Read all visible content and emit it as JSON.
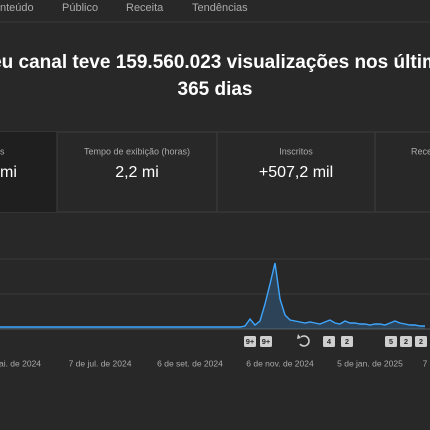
{
  "tabs": [
    "nteúdo",
    "Público",
    "Receita",
    "Tendências"
  ],
  "headline": {
    "line1": "eu canal teve 159.560.023 visualizações nos últim",
    "line2": "365 dias"
  },
  "cards": [
    {
      "label": "s",
      "value": "mi"
    },
    {
      "label": "Tempo de exibição (horas)",
      "value": "2,2 mi"
    },
    {
      "label": "Inscritos",
      "value": "+507,2 mil"
    },
    {
      "label": "Rece",
      "value": ""
    }
  ],
  "badges": [
    "9+",
    "9+",
    "4",
    "2",
    "5",
    "2",
    "2"
  ],
  "chart_data": {
    "type": "line",
    "color": "#3ea6ff",
    "ylim": [
      0,
      100
    ],
    "categories": [
      null,
      null,
      null,
      null,
      "ai. de 2024",
      null,
      null,
      null,
      null,
      null,
      null,
      null,
      null,
      null,
      null,
      null,
      null,
      null,
      null,
      null,
      "7 de jul. de 2024",
      null,
      null,
      null,
      null,
      null,
      null,
      null,
      null,
      null,
      null,
      null,
      null,
      null,
      null,
      null,
      null,
      null,
      "6 de set. de 2024",
      null,
      null,
      null,
      null,
      null,
      null,
      null,
      null,
      null,
      null,
      null,
      null,
      null,
      null,
      null,
      null,
      null,
      "6 de nov. de 2024",
      null,
      null,
      null,
      null,
      null,
      null,
      null,
      null,
      null,
      null,
      null,
      null,
      null,
      null,
      null,
      null,
      null,
      "5 de jan. de 2025",
      null,
      null,
      null,
      null,
      null,
      null,
      null,
      null,
      null,
      null,
      "7"
    ],
    "values": [
      2,
      2,
      2,
      2,
      2,
      2,
      2,
      2,
      2,
      2,
      2,
      2,
      2,
      2,
      2,
      2,
      2,
      2,
      2,
      2,
      2,
      2,
      2,
      2,
      2,
      2,
      2,
      2,
      2,
      2,
      2,
      2,
      2,
      2,
      2,
      2,
      2,
      2,
      2,
      2,
      2,
      2,
      2,
      2,
      2,
      2,
      2,
      2,
      2,
      3,
      10,
      4,
      8,
      25,
      45,
      66,
      30,
      14,
      9,
      8,
      7,
      6,
      7,
      6,
      5,
      7,
      9,
      6,
      5,
      8,
      6,
      6,
      5,
      5,
      4,
      5,
      5,
      4,
      6,
      8,
      6,
      5,
      4,
      4,
      3,
      3
    ]
  }
}
